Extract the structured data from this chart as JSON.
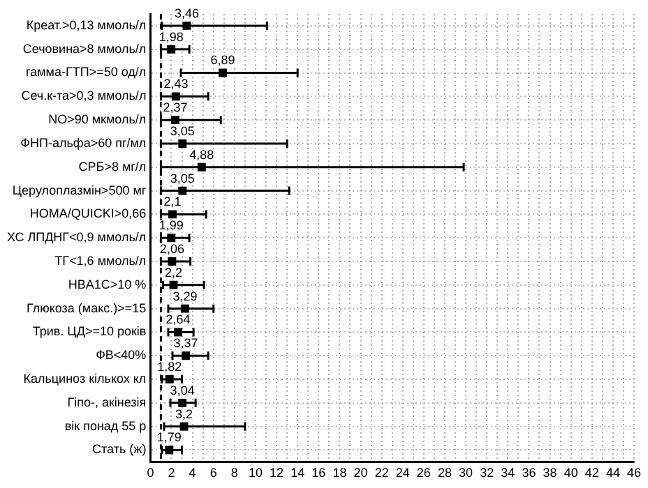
{
  "chart_data": {
    "type": "scatter",
    "orientation": "horizontal",
    "categories": [
      "Креат.>0,13 ммоль/л",
      "Сечовина>8 ммоль/л",
      "гамма-ГТП>=50 од/л",
      "Сеч.к-та>0,3 ммоль/л",
      "NO>90 мкмоль/л",
      "ФНП-альфа>60 пг/мл",
      "СРБ>8 мг/л",
      "Церулоплазмін>500 мг",
      "HOMA/QUICKI>0,66",
      "ХС ЛПДНГ<0,9 ммоль/л",
      "ТГ<1,6 ммоль/л",
      "HBA1C>10 %",
      "Глюкоза (макс.)>=15",
      "Трив. ЦД>=10 років",
      "ФВ<40%",
      "Кальциноз кількох кл",
      "Гіпо-, акінезія",
      "вік понад 55 р",
      "Стать (ж)"
    ],
    "values": [
      3.46,
      1.98,
      6.89,
      2.43,
      2.37,
      3.05,
      4.88,
      3.05,
      2.1,
      1.99,
      2.06,
      2.2,
      3.29,
      2.64,
      3.37,
      1.82,
      3.04,
      3.2,
      1.79
    ],
    "value_labels": [
      "3,46",
      "1,98",
      "6,89",
      "2,43",
      "2,37",
      "3,05",
      "4,88",
      "3,05",
      "2,1",
      "1,99",
      "2,06",
      "2,2",
      "3,29",
      "2,64",
      "3,37",
      "1,82",
      "3,04",
      "3,2",
      "1,79"
    ],
    "errors": [
      [
        1.1,
        11.1
      ],
      [
        1.0,
        3.7
      ],
      [
        2.9,
        14.0
      ],
      [
        1.0,
        5.5
      ],
      [
        1.0,
        6.7
      ],
      [
        1.0,
        13.0
      ],
      [
        1.0,
        29.8
      ],
      [
        1.0,
        13.2
      ],
      [
        1.0,
        5.3
      ],
      [
        1.0,
        3.7
      ],
      [
        1.0,
        3.8
      ],
      [
        1.2,
        5.1
      ],
      [
        1.7,
        6.0
      ],
      [
        1.7,
        4.1
      ],
      [
        2.1,
        5.5
      ],
      [
        1.1,
        3.0
      ],
      [
        1.9,
        4.3
      ],
      [
        1.3,
        9.0
      ],
      [
        1.1,
        3.0
      ]
    ],
    "color": "#000000",
    "marker": "square",
    "grid": true,
    "legend": false,
    "xlim": [
      0,
      46
    ],
    "xticks": [
      0,
      {
        "value": 1,
        "label": null
      },
      2,
      {
        "value": 3,
        "label": null
      },
      4,
      {
        "value": 5,
        "label": null
      },
      6,
      {
        "value": 7,
        "label": null
      },
      8,
      {
        "value": 9,
        "label": null
      },
      10,
      {
        "value": 11,
        "label": null
      },
      12,
      {
        "value": 13,
        "label": null
      },
      14,
      {
        "value": 15,
        "label": null
      },
      16,
      {
        "value": 17,
        "label": null
      },
      18,
      {
        "value": 19,
        "label": null
      },
      20,
      {
        "value": 21,
        "label": null
      },
      22,
      {
        "value": 23,
        "label": null
      },
      24,
      {
        "value": 25,
        "label": null
      },
      26,
      {
        "value": 27,
        "label": null
      },
      28,
      {
        "value": 29,
        "label": null
      },
      30,
      {
        "value": 31,
        "label": null
      },
      32,
      {
        "value": 33,
        "label": null
      },
      34,
      {
        "value": 35,
        "label": null
      },
      36,
      {
        "value": 37,
        "label": null
      },
      38,
      {
        "value": 39,
        "label": null
      },
      40,
      {
        "value": 41,
        "label": null
      },
      42,
      {
        "value": 43,
        "label": null
      },
      44,
      {
        "value": 45,
        "label": null
      },
      46
    ],
    "ref_lines": [
      {
        "axis": "x",
        "value": 1,
        "line_style": "dashed"
      }
    ]
  }
}
